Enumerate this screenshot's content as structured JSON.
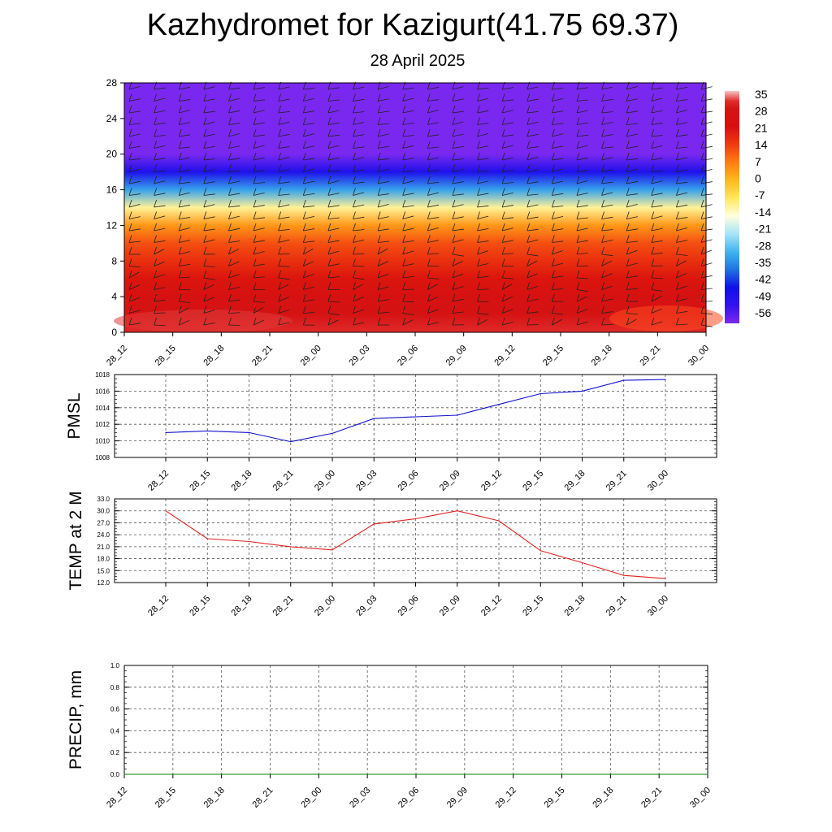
{
  "header": {
    "title": "Kazhydromet for Kazigurt(41.75 69.37)",
    "date": "28 April 2025"
  },
  "colorbar": {
    "labels": [
      "35",
      "28",
      "21",
      "14",
      "7",
      "0",
      "-7",
      "-14",
      "-21",
      "-28",
      "-35",
      "-42",
      "-49",
      "-56"
    ],
    "stops": [
      "#f4c4c4",
      "#e02020",
      "#d01010",
      "#f03a10",
      "#ff7a10",
      "#ffb020",
      "#ffe860",
      "#ffffe0",
      "#a8e8f8",
      "#40b8f0",
      "#2070e0",
      "#1010e8",
      "#3a10f0",
      "#7a28f0"
    ]
  },
  "chart_data": [
    {
      "type": "heatmap",
      "name": "cross-section",
      "y_ticks": [
        0,
        4,
        8,
        12,
        16,
        20,
        24,
        28
      ],
      "ylim": [
        0,
        28
      ],
      "x_ticks": [
        "28_12",
        "28_15",
        "28_18",
        "28_21",
        "29_00",
        "29_03",
        "29_06",
        "29_09",
        "29_12",
        "29_15",
        "29_18",
        "29_21",
        "30_00"
      ],
      "colorbar_range": [
        -56,
        35
      ],
      "levels": [
        0,
        2,
        4,
        6,
        8,
        10,
        12,
        14,
        16,
        18,
        20,
        22,
        24,
        26,
        28
      ],
      "temperature_profile": [
        31,
        27,
        24,
        20,
        16,
        12,
        4,
        -10,
        -30,
        -45,
        -56,
        -60,
        -60,
        -60,
        -60
      ],
      "wind_barbs": true,
      "grid": false
    },
    {
      "type": "line",
      "name": "pmsl",
      "ylabel": "PMSL",
      "x": [
        "28_12",
        "28_15",
        "28_18",
        "28_21",
        "29_00",
        "29_03",
        "29_06",
        "29_09",
        "29_12",
        "29_15",
        "29_18",
        "29_21",
        "30_00"
      ],
      "values": [
        1011.0,
        1011.2,
        1011.0,
        1009.9,
        1010.9,
        1012.7,
        1012.9,
        1013.1,
        1014.4,
        1015.7,
        1016.0,
        1017.3,
        1017.4
      ],
      "ylim": [
        1008,
        1018
      ],
      "y_ticks": [
        "1008",
        "1010",
        "1012",
        "1014",
        "1016",
        "1018"
      ],
      "color": "#1010d0",
      "grid": true
    },
    {
      "type": "line",
      "name": "temp2m",
      "ylabel": "TEMP at 2 M",
      "x": [
        "28_12",
        "28_15",
        "28_18",
        "28_21",
        "29_00",
        "29_03",
        "29_06",
        "29_09",
        "29_12",
        "29_15",
        "29_18",
        "29_21",
        "30_00"
      ],
      "values": [
        30.0,
        23.0,
        22.3,
        21.0,
        20.2,
        26.7,
        28.0,
        30.0,
        27.5,
        20.0,
        17.0,
        13.8,
        13.0
      ],
      "ylim": [
        12,
        33
      ],
      "y_ticks": [
        "12.0",
        "15.0",
        "18.0",
        "21.0",
        "24.0",
        "27.0",
        "30.0",
        "33.0"
      ],
      "color": "#e02020",
      "grid": true
    },
    {
      "type": "line",
      "name": "precip",
      "ylabel": "PRECIP, mm",
      "x": [
        "28_12",
        "28_15",
        "28_18",
        "28_21",
        "29_00",
        "29_03",
        "29_06",
        "29_09",
        "29_12",
        "29_15",
        "29_18",
        "29_21",
        "30_00"
      ],
      "values": [
        0,
        0,
        0,
        0,
        0,
        0,
        0,
        0,
        0,
        0,
        0,
        0,
        0
      ],
      "ylim": [
        0,
        1
      ],
      "y_ticks": [
        "0.0",
        "0.2",
        "0.4",
        "0.6",
        "0.8",
        "1.0"
      ],
      "color": "#008000",
      "grid": true
    }
  ]
}
